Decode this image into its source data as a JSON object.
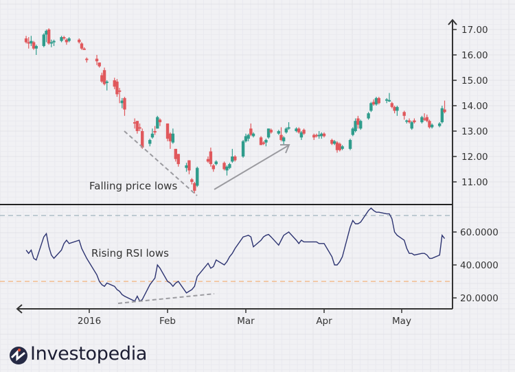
{
  "chart_data": [
    {
      "type": "candlestick",
      "panel": "price",
      "yaxis": {
        "position": "right",
        "ticks": [
          "17.00",
          "16.00",
          "15.00",
          "14.00",
          "13.00",
          "12.00",
          "11.00"
        ],
        "range": [
          10.3,
          17.4
        ]
      },
      "grid": true,
      "colors": {
        "up": "#2f9c8c",
        "down": "#e0585c",
        "axis": "#333333"
      },
      "annotation": "Falling price lows",
      "candles": [
        [
          "2015-12-07",
          16.65,
          16.75,
          16.45,
          16.5
        ],
        [
          "2015-12-08",
          16.5,
          16.7,
          16.25,
          16.45
        ],
        [
          "2015-12-09",
          16.45,
          16.75,
          16.35,
          16.55
        ],
        [
          "2015-12-10",
          16.5,
          16.55,
          16.2,
          16.25
        ],
        [
          "2015-12-11",
          16.25,
          16.4,
          16.0,
          16.35
        ],
        [
          "2015-12-14",
          16.35,
          16.85,
          16.3,
          16.8
        ],
        [
          "2015-12-15",
          16.8,
          17.0,
          16.5,
          16.95
        ],
        [
          "2015-12-16",
          17.0,
          17.05,
          16.4,
          16.45
        ],
        [
          "2015-12-17",
          16.45,
          16.6,
          16.3,
          16.5
        ],
        [
          "2015-12-18",
          16.5,
          16.6,
          16.35,
          16.55
        ],
        [
          "2015-12-21",
          16.55,
          16.75,
          16.5,
          16.7
        ],
        [
          "2015-12-22",
          16.7,
          16.75,
          16.6,
          16.65
        ],
        [
          "2015-12-23",
          16.6,
          16.65,
          16.4,
          16.5
        ],
        [
          "2015-12-24",
          16.55,
          16.7,
          16.5,
          16.65
        ],
        [
          "2015-12-28",
          16.6,
          16.65,
          16.45,
          16.5
        ],
        [
          "2015-12-29",
          16.45,
          16.5,
          16.2,
          16.25
        ],
        [
          "2015-12-30",
          16.25,
          16.3,
          16.2,
          16.22
        ],
        [
          "2015-12-31",
          15.85,
          15.9,
          15.7,
          15.8
        ],
        [
          "2016-01-04",
          15.85,
          16.0,
          15.6,
          15.75
        ],
        [
          "2016-01-05",
          15.7,
          15.7,
          15.5,
          15.55
        ],
        [
          "2016-01-06",
          15.2,
          15.3,
          14.9,
          14.95
        ],
        [
          "2016-01-07",
          15.4,
          15.5,
          14.8,
          14.85
        ],
        [
          "2016-01-08",
          14.9,
          15.0,
          14.6,
          14.95
        ],
        [
          "2016-01-11",
          15.0,
          15.1,
          14.65,
          14.75
        ],
        [
          "2016-01-12",
          14.95,
          15.05,
          14.35,
          14.45
        ],
        [
          "2016-01-13",
          14.6,
          14.7,
          14.1,
          14.55
        ],
        [
          "2016-01-14",
          14.1,
          14.3,
          13.9,
          14.2
        ],
        [
          "2016-01-15",
          14.3,
          14.35,
          13.6,
          13.85
        ],
        [
          "2016-01-19",
          13.35,
          13.5,
          13.1,
          13.3
        ],
        [
          "2016-01-20",
          13.4,
          13.4,
          12.9,
          13.0
        ],
        [
          "2016-01-21",
          13.15,
          13.3,
          13.0,
          13.1
        ],
        [
          "2016-01-22",
          13.0,
          13.1,
          12.3,
          12.35
        ],
        [
          "2016-01-25",
          12.5,
          12.7,
          12.4,
          12.65
        ],
        [
          "2016-01-26",
          12.75,
          13.1,
          12.7,
          12.9
        ],
        [
          "2016-01-27",
          13.0,
          13.2,
          12.85,
          12.95
        ],
        [
          "2016-01-28",
          13.1,
          13.6,
          13.1,
          13.55
        ],
        [
          "2016-01-29",
          13.45,
          13.5,
          13.2,
          13.35
        ],
        [
          "2016-02-01",
          13.3,
          13.3,
          12.6,
          12.7
        ],
        [
          "2016-02-02",
          12.9,
          12.95,
          12.3,
          12.6
        ],
        [
          "2016-02-03",
          12.55,
          13.1,
          12.5,
          12.9
        ],
        [
          "2016-02-04",
          12.3,
          12.3,
          11.8,
          11.9
        ],
        [
          "2016-02-05",
          12.1,
          12.1,
          11.6,
          11.7
        ],
        [
          "2016-02-08",
          11.55,
          11.75,
          11.4,
          11.65
        ],
        [
          "2016-02-09",
          11.85,
          11.85,
          11.3,
          11.45
        ],
        [
          "2016-02-10",
          11.1,
          11.15,
          10.9,
          11.0
        ],
        [
          "2016-02-11",
          10.95,
          11.0,
          10.55,
          10.65
        ],
        [
          "2016-02-12",
          10.85,
          11.6,
          10.8,
          11.55
        ],
        [
          "2016-02-16",
          11.9,
          12.0,
          11.75,
          11.8
        ],
        [
          "2016-02-17",
          12.2,
          12.35,
          11.6,
          11.7
        ],
        [
          "2016-02-18",
          11.65,
          11.7,
          11.4,
          11.5
        ],
        [
          "2016-02-19",
          11.7,
          11.85,
          11.65,
          11.8
        ],
        [
          "2016-02-22",
          11.75,
          11.8,
          11.45,
          11.5
        ],
        [
          "2016-02-23",
          11.45,
          11.65,
          11.25,
          11.6
        ],
        [
          "2016-02-24",
          11.55,
          11.75,
          11.5,
          11.7
        ],
        [
          "2016-02-25",
          11.8,
          12.3,
          11.75,
          12.0
        ],
        [
          "2016-02-26",
          12.0,
          12.05,
          11.8,
          11.85
        ],
        [
          "2016-02-29",
          12.0,
          12.65,
          11.95,
          12.6
        ],
        [
          "2016-03-01",
          12.6,
          12.9,
          12.55,
          12.8
        ],
        [
          "2016-03-02",
          12.7,
          12.9,
          12.6,
          12.85
        ],
        [
          "2016-03-03",
          13.1,
          13.3,
          12.8,
          12.85
        ],
        [
          "2016-03-04",
          12.8,
          12.95,
          12.75,
          12.9
        ],
        [
          "2016-03-07",
          12.75,
          12.8,
          12.45,
          12.45
        ],
        [
          "2016-03-08",
          12.55,
          12.6,
          12.45,
          12.5
        ],
        [
          "2016-03-09",
          12.55,
          12.7,
          12.4,
          12.65
        ],
        [
          "2016-03-10",
          12.75,
          13.1,
          12.7,
          13.1
        ],
        [
          "2016-03-11",
          13.05,
          13.1,
          12.9,
          12.95
        ],
        [
          "2016-03-14",
          12.9,
          13.05,
          12.85,
          13.0
        ],
        [
          "2016-03-15",
          12.85,
          13.15,
          12.6,
          12.65
        ],
        [
          "2016-03-16",
          12.6,
          12.8,
          12.45,
          12.75
        ],
        [
          "2016-03-17",
          12.95,
          13.15,
          12.9,
          13.1
        ],
        [
          "2016-03-18",
          13.1,
          13.35,
          13.05,
          13.15
        ],
        [
          "2016-03-21",
          13.0,
          13.15,
          12.95,
          13.1
        ],
        [
          "2016-03-22",
          13.1,
          13.15,
          12.9,
          12.95
        ],
        [
          "2016-03-23",
          12.75,
          13.0,
          12.65,
          12.95
        ],
        [
          "2016-03-24",
          13.05,
          13.1,
          12.85,
          12.9
        ],
        [
          "2016-03-28",
          12.85,
          12.9,
          12.65,
          12.75
        ],
        [
          "2016-03-29",
          12.85,
          12.9,
          12.75,
          12.8
        ],
        [
          "2016-03-30",
          12.8,
          13.0,
          12.7,
          12.85
        ],
        [
          "2016-03-31",
          12.8,
          12.95,
          12.7,
          12.9
        ],
        [
          "2016-04-01",
          12.9,
          12.95,
          12.75,
          12.8
        ],
        [
          "2016-04-04",
          12.65,
          12.7,
          12.45,
          12.5
        ],
        [
          "2016-04-05",
          12.5,
          12.65,
          12.45,
          12.6
        ],
        [
          "2016-04-06",
          12.55,
          12.6,
          12.15,
          12.25
        ],
        [
          "2016-04-07",
          12.5,
          12.55,
          12.2,
          12.25
        ],
        [
          "2016-04-08",
          12.3,
          12.45,
          12.25,
          12.4
        ],
        [
          "2016-04-11",
          12.3,
          12.7,
          12.25,
          12.65
        ],
        [
          "2016-04-12",
          12.85,
          13.15,
          12.8,
          13.1
        ],
        [
          "2016-04-13",
          13.0,
          13.5,
          12.95,
          13.4
        ],
        [
          "2016-04-14",
          13.5,
          13.6,
          13.1,
          13.25
        ],
        [
          "2016-04-15",
          13.1,
          13.45,
          13.05,
          13.4
        ],
        [
          "2016-04-18",
          13.5,
          13.75,
          13.45,
          13.7
        ],
        [
          "2016-04-19",
          13.8,
          14.15,
          13.75,
          14.1
        ],
        [
          "2016-04-20",
          14.15,
          14.25,
          14.0,
          14.05
        ],
        [
          "2016-04-21",
          14.05,
          14.35,
          14.0,
          14.3
        ],
        [
          "2016-04-22",
          14.3,
          14.35,
          14.05,
          14.1
        ],
        [
          "2016-04-25",
          14.2,
          14.3,
          14.1,
          14.25
        ],
        [
          "2016-04-26",
          14.2,
          14.5,
          14.15,
          14.22
        ],
        [
          "2016-04-27",
          14.1,
          14.15,
          13.9,
          13.95
        ],
        [
          "2016-04-28",
          13.95,
          14.0,
          13.7,
          13.8
        ],
        [
          "2016-04-29",
          13.8,
          14.0,
          13.6,
          13.95
        ],
        [
          "2016-05-02",
          13.75,
          13.8,
          13.45,
          13.6
        ],
        [
          "2016-05-03",
          13.38,
          13.45,
          13.3,
          13.42
        ],
        [
          "2016-05-04",
          13.42,
          13.5,
          13.3,
          13.35
        ],
        [
          "2016-05-05",
          13.1,
          13.4,
          13.05,
          13.35
        ],
        [
          "2016-05-06",
          13.42,
          13.5,
          13.3,
          13.35
        ],
        [
          "2016-05-09",
          13.35,
          13.6,
          13.3,
          13.55
        ],
        [
          "2016-05-10",
          13.5,
          13.7,
          13.4,
          13.48
        ],
        [
          "2016-05-11",
          13.55,
          13.65,
          13.35,
          13.4
        ],
        [
          "2016-05-12",
          13.4,
          13.45,
          13.1,
          13.15
        ],
        [
          "2016-05-13",
          13.15,
          13.3,
          13.1,
          13.25
        ],
        [
          "2016-05-16",
          13.2,
          13.35,
          13.15,
          13.3
        ],
        [
          "2016-05-17",
          13.35,
          14.0,
          13.3,
          13.9
        ],
        [
          "2016-05-18",
          13.85,
          14.2,
          13.7,
          13.75
        ]
      ]
    },
    {
      "type": "line",
      "panel": "rsi",
      "yaxis": {
        "position": "right",
        "ticks": [
          "60.0000",
          "40.0000",
          "20.0000"
        ],
        "range": [
          14,
          77
        ]
      },
      "xaxis": {
        "ticks": [
          [
            "2016-01-01",
            "2016"
          ],
          [
            "2016-02-01",
            "Feb"
          ],
          [
            "2016-03-01",
            "Mar"
          ],
          [
            "2016-04-01",
            "Apr"
          ],
          [
            "2016-05-01",
            "May"
          ]
        ]
      },
      "grid": true,
      "reference_lines": [
        {
          "value": 70,
          "color": "#9fb4bd"
        },
        {
          "value": 30,
          "color": "#f2b27a"
        }
      ],
      "line_color": "#2b3270",
      "annotation": "Rising RSI lows",
      "values": [
        49,
        47,
        49,
        44,
        43,
        57,
        59,
        51,
        46,
        44,
        49,
        53,
        55,
        53,
        55,
        50,
        47,
        44,
        34,
        30,
        28,
        27,
        29,
        27,
        25,
        24,
        22,
        21,
        18,
        21,
        18,
        19,
        28,
        30,
        32,
        40,
        38,
        30,
        29,
        27,
        29,
        30,
        23,
        24,
        25,
        27,
        33,
        41,
        38,
        39,
        43,
        40,
        42,
        45,
        47,
        50,
        57,
        57.5,
        58,
        57,
        51,
        55,
        57,
        58,
        58.5,
        57,
        52,
        55,
        58,
        59,
        60,
        55,
        53,
        55,
        54,
        54,
        54,
        53,
        53,
        53,
        45,
        40,
        40,
        42,
        45,
        63,
        67,
        65,
        65,
        66,
        73,
        74.5,
        73,
        72,
        72,
        71,
        71,
        68,
        60,
        58,
        55,
        50,
        47,
        47,
        46,
        47,
        47,
        46,
        44,
        44,
        46,
        58,
        56
      ]
    }
  ],
  "logo": {
    "text": "Investopedia"
  }
}
